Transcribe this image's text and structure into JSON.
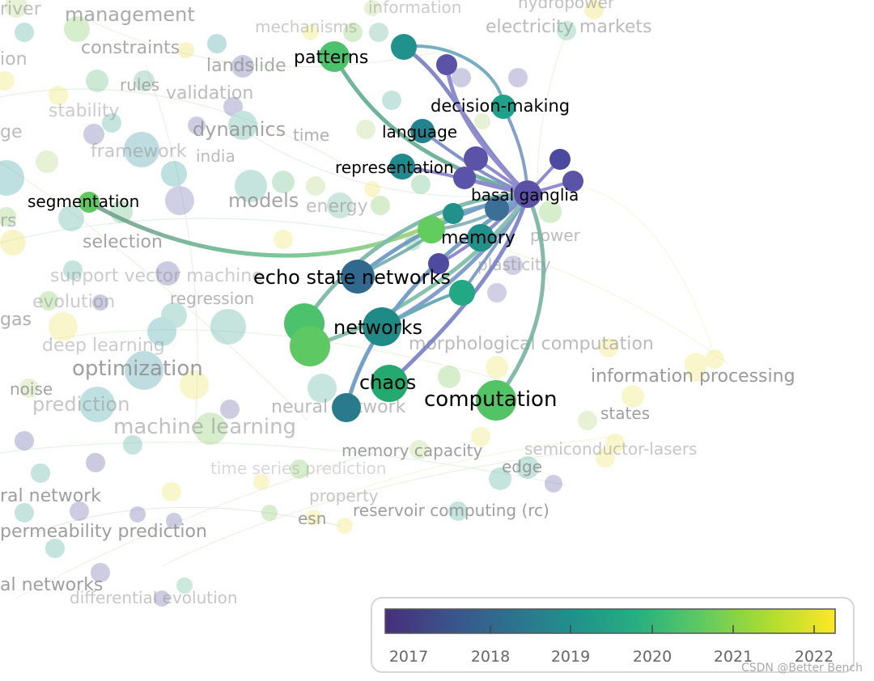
{
  "background_terms": [
    "river",
    "management",
    "mechanisms",
    "information",
    "hydropower",
    "electricity markets",
    "constraints",
    "landslide",
    "ion",
    "rules",
    "validation",
    "stability",
    "ge",
    "framework",
    "india",
    "time",
    "dynamics",
    "models",
    "energy",
    "rs",
    "selection",
    "power",
    "support vector machine",
    "evolution",
    "regression",
    "gas",
    "plasticity",
    "deep learning",
    "optimization",
    "morphological computation",
    "noise",
    "prediction",
    "neural network",
    "machine learning",
    "information processing",
    "states",
    "memory capacity",
    "semiconductor-lasers",
    "edge",
    "time series prediction",
    "ral network",
    "property",
    "esn",
    "reservoir computing (rc)",
    "permeability prediction",
    "al networks",
    "differential evolution"
  ],
  "focus_terms": [
    "patterns",
    "decision-making",
    "language",
    "representation",
    "basal ganglia",
    "segmentation",
    "memory",
    "echo state networks",
    "networks",
    "chaos",
    "computation"
  ],
  "legend": {
    "ticks": [
      "2017",
      "2018",
      "2019",
      "2020",
      "2021",
      "2022"
    ],
    "colors": [
      "#472e7c",
      "#3b528b",
      "#2c728e",
      "#21918c",
      "#28ae80",
      "#5ec962",
      "#addc30",
      "#fde725"
    ]
  },
  "watermark": "CSDN @Better Bench"
}
